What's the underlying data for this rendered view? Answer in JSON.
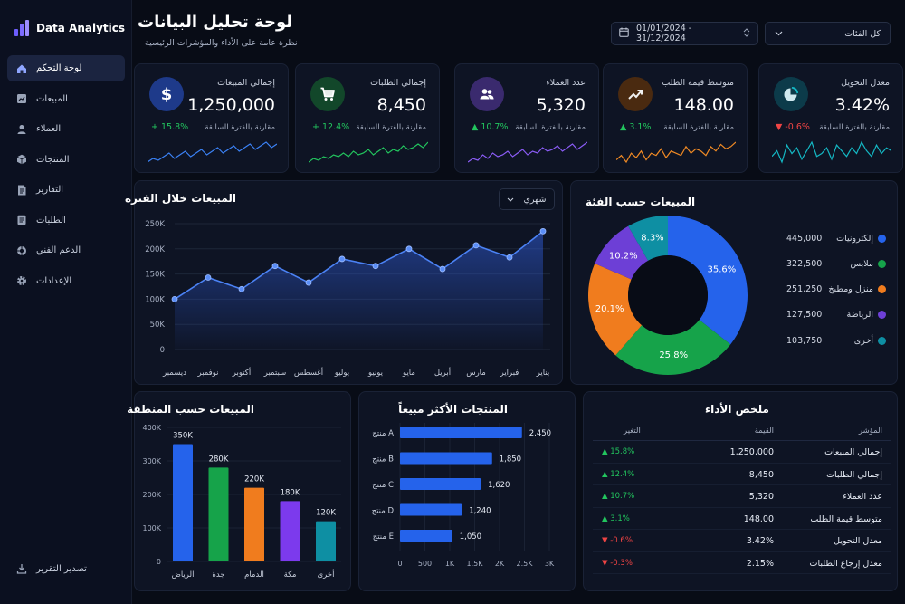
{
  "app": {
    "name": "Data Analytics"
  },
  "nav": {
    "items": [
      {
        "label": "لوحة التحكم",
        "icon": "home-icon",
        "active": true
      },
      {
        "label": "المبيعات",
        "icon": "chart-icon"
      },
      {
        "label": "العملاء",
        "icon": "user-icon"
      },
      {
        "label": "المنتجات",
        "icon": "box-icon"
      },
      {
        "label": "التقارير",
        "icon": "document-icon"
      },
      {
        "label": "الطلبات",
        "icon": "list-icon"
      },
      {
        "label": "الدعم الفني",
        "icon": "support-icon"
      },
      {
        "label": "الإعدادات",
        "icon": "gear-icon"
      }
    ],
    "export_label": "تصدير التقرير"
  },
  "header": {
    "title": "لوحة تحليل البيانات",
    "subtitle": "نظرة عامة على الأداء والمؤشرات الرئيسية",
    "date_range": "01/01/2024 - 31/12/2024",
    "category_filter": "كل الفئات"
  },
  "kpis": [
    {
      "label": "معدل التحويل",
      "value": "3.42%",
      "change": "▼ -0.6%",
      "direction": "down",
      "compare": "مقارنة بالفترة السابقة",
      "icon": "pie-chart-icon",
      "color": "#14b8c4",
      "bg": "#0c3b4a",
      "spark": [
        14,
        16,
        12,
        18,
        15,
        17,
        13,
        16,
        19,
        14,
        15,
        17,
        13,
        18,
        16,
        14,
        17,
        15,
        19,
        16,
        14,
        18,
        15,
        17,
        16
      ]
    },
    {
      "label": "متوسط قيمة الطلب",
      "value": "148.00",
      "change": "▲ 3.1%",
      "direction": "up",
      "compare": "مقارنة بالفترة السابقة",
      "icon": "trend-up-icon",
      "color": "#f08a24",
      "bg": "#4a2a10",
      "spark": [
        10,
        12,
        9,
        13,
        11,
        14,
        10,
        13,
        12,
        15,
        11,
        14,
        13,
        12,
        16,
        13,
        15,
        14,
        12,
        16,
        14,
        17,
        15,
        16,
        18
      ]
    },
    {
      "label": "عدد العملاء",
      "value": "5,320",
      "change": "▲ 10.7%",
      "direction": "up",
      "compare": "مقارنة بالفترة السابقة",
      "icon": "users-icon",
      "color": "#8b5cf6",
      "bg": "#3a2a6e",
      "spark": [
        8,
        10,
        9,
        12,
        10,
        13,
        11,
        12,
        14,
        11,
        13,
        15,
        12,
        14,
        13,
        16,
        14,
        15,
        17,
        14,
        16,
        18,
        15,
        17,
        19
      ]
    },
    {
      "label": "إجمالي الطلبات",
      "value": "8,450",
      "change": "+ 12.4%",
      "direction": "up",
      "compare": "مقارنة بالفترة السابقة",
      "icon": "cart-icon",
      "color": "#22c55e",
      "bg": "#12472a",
      "spark": [
        9,
        11,
        10,
        12,
        11,
        13,
        12,
        14,
        12,
        15,
        13,
        14,
        16,
        13,
        15,
        17,
        14,
        16,
        15,
        18,
        16,
        17,
        19,
        17,
        20
      ]
    },
    {
      "label": "إجمالي المبيعات",
      "value": "1,250,000",
      "change": "+ 15.8%",
      "direction": "up",
      "compare": "مقارنة بالفترة السابقة",
      "icon": "dollar-icon",
      "color": "#3b82f6",
      "bg": "#1e3a8a",
      "spark": [
        8,
        10,
        9,
        11,
        13,
        10,
        12,
        14,
        11,
        13,
        15,
        12,
        14,
        16,
        13,
        15,
        17,
        14,
        16,
        18,
        15,
        17,
        19,
        16,
        18
      ]
    }
  ],
  "line_panel": {
    "title": "المبيعات خلال الفترة",
    "period": "شهري"
  },
  "pie_panel": {
    "title": "المبيعات حسب الفئة"
  },
  "region_panel": {
    "title": "المبيعات حسب المنطقة"
  },
  "products_panel": {
    "title": "المنتجات الأكثر مبيعاً"
  },
  "performance": {
    "title": "ملخص الأداء",
    "headers": {
      "indicator": "المؤشر",
      "value": "القيمة",
      "change": "التغير"
    },
    "rows": [
      {
        "indicator": "إجمالي المبيعات",
        "value": "1,250,000",
        "change": "▲ 15.8%",
        "direction": "up"
      },
      {
        "indicator": "إجمالي الطلبات",
        "value": "8,450",
        "change": "▲ 12.4%",
        "direction": "up"
      },
      {
        "indicator": "عدد العملاء",
        "value": "5,320",
        "change": "▲ 10.7%",
        "direction": "up"
      },
      {
        "indicator": "متوسط قيمة الطلب",
        "value": "148.00",
        "change": "▲ 3.1%",
        "direction": "up"
      },
      {
        "indicator": "معدل التحويل",
        "value": "3.42%",
        "change": "▼ -0.6%",
        "direction": "down"
      },
      {
        "indicator": "معدل إرجاع الطلبات",
        "value": "2.15%",
        "change": "▼ -0.3%",
        "direction": "down"
      }
    ]
  },
  "colors": {
    "accent": "#3b82f6",
    "up": "#22c55e",
    "down": "#ef4444"
  },
  "chart_data": [
    {
      "type": "line",
      "categories": [
        "يناير",
        "فبراير",
        "مارس",
        "أبريل",
        "مايو",
        "يونيو",
        "يوليو",
        "أغسطس",
        "سبتمبر",
        "أكتوبر",
        "نوفمبر",
        "ديسمبر"
      ],
      "values": [
        100000,
        143000,
        120000,
        166000,
        133000,
        180000,
        166000,
        200000,
        160000,
        207000,
        183000,
        235000
      ],
      "ylim": [
        0,
        250000
      ],
      "yticks": [
        "0",
        "50K",
        "100K",
        "150K",
        "200K",
        "250K"
      ],
      "grid": true
    },
    {
      "type": "pie",
      "donut": true,
      "categories": [
        "إلكترونيات",
        "ملابس",
        "منزل ومطبخ",
        "الرياضة",
        "أخرى"
      ],
      "values": [
        445000,
        322500,
        251250,
        127500,
        103750
      ],
      "value_labels": [
        "445,000",
        "322,500",
        "251,250",
        "127,500",
        "103,750"
      ],
      "percent_labels": [
        "35.6%",
        "25.8%",
        "20.1%",
        "10.2%",
        "8.3%"
      ],
      "colors": [
        "#2563eb",
        "#16a34a",
        "#f07c1e",
        "#6d3fd6",
        "#0e8fa3"
      ],
      "legend": "right"
    },
    {
      "type": "bar",
      "categories": [
        "الرياض",
        "جدة",
        "الدمام",
        "مكة",
        "أخرى"
      ],
      "values": [
        350000,
        280000,
        220000,
        180000,
        120000
      ],
      "value_labels": [
        "350K",
        "280K",
        "220K",
        "180K",
        "120K"
      ],
      "ylim": [
        0,
        400000
      ],
      "yticks": [
        "0",
        "100K",
        "200K",
        "300K",
        "400K"
      ],
      "colors": [
        "#2563eb",
        "#16a34a",
        "#f07c1e",
        "#7c3aed",
        "#0e8fa3"
      ]
    },
    {
      "type": "bar",
      "orientation": "horizontal",
      "categories": [
        "منتج A",
        "منتج B",
        "منتج C",
        "منتج D",
        "منتج E"
      ],
      "values": [
        2450,
        1850,
        1620,
        1240,
        1050
      ],
      "value_labels": [
        "2,450",
        "1,850",
        "1,620",
        "1,240",
        "1,050"
      ],
      "xlim": [
        0,
        3000
      ],
      "xticks": [
        "0",
        "500",
        "1K",
        "1.5K",
        "2K",
        "2.5K",
        "3K"
      ],
      "color": "#2563eb"
    }
  ]
}
